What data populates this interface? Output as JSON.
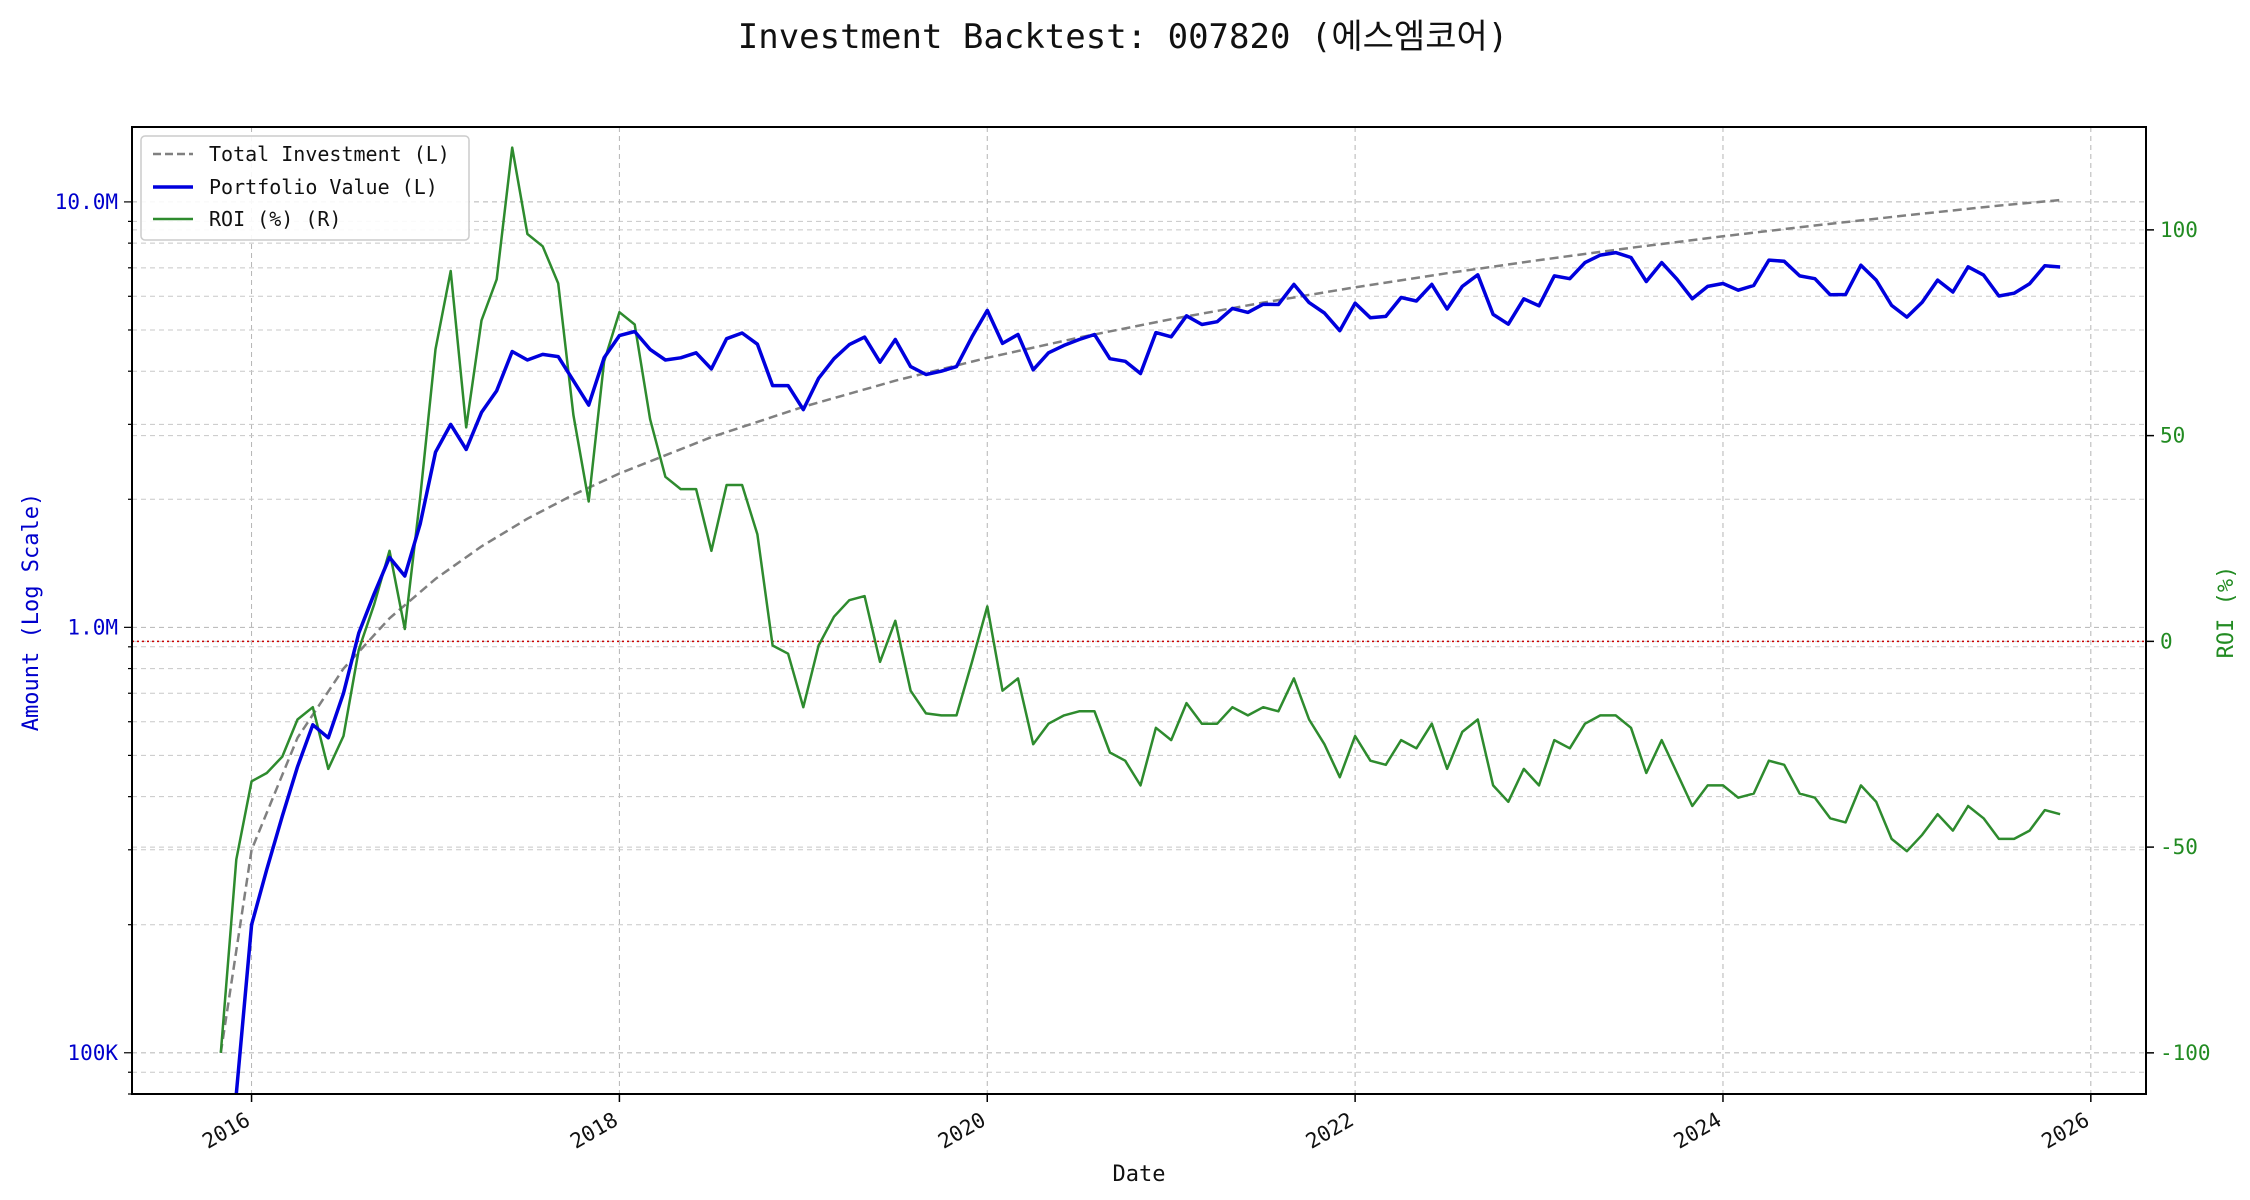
{
  "chart_data": {
    "type": "line",
    "title": "Investment Backtest: 007820 (에스엠코어)",
    "xlabel": "Date",
    "ylabel_left": "Amount (Log Scale)",
    "ylabel_right": "ROI (%)",
    "left_scale": "log",
    "left_ylim": [
      80000,
      15000000
    ],
    "right_ylim": [
      -110,
      125
    ],
    "xlim": [
      2015.35,
      2026.3
    ],
    "grid": true,
    "legend_position": "upper-left",
    "x_ticks": [
      "2016",
      "2018",
      "2020",
      "2022",
      "2024",
      "2026"
    ],
    "left_ticks": [
      "100K",
      "1.0M",
      "10.0M"
    ],
    "right_ticks": [
      "-100",
      "-50",
      "0",
      "50",
      "100"
    ],
    "reference_line": {
      "axis": "right",
      "value": 0,
      "color": "#cc0000",
      "style": "dotted"
    },
    "colors": {
      "total_investment": "#808080",
      "portfolio": "#0000dd",
      "roi": "#2e8b2e",
      "left_axis": "#0000cc",
      "right_axis": "#228b22"
    },
    "series": [
      {
        "name": "Total Investment (L)",
        "axis": "left",
        "style": "dashed",
        "x": [
          2015.833,
          2016.0,
          2016.25,
          2016.5,
          2016.75,
          2017.0,
          2017.25,
          2017.5,
          2017.75,
          2018.0,
          2018.5,
          2019.0,
          2019.5,
          2020.0,
          2020.5,
          2021.0,
          2021.5,
          2022.0,
          2022.5,
          2023.0,
          2023.5,
          2024.0,
          2024.5,
          2025.0,
          2025.5,
          2025.833
        ],
        "y": [
          100000,
          300000,
          550000,
          800000,
          1050000,
          1300000,
          1550000,
          1800000,
          2050000,
          2300000,
          2800000,
          3300000,
          3800000,
          4300000,
          4800000,
          5300000,
          5800000,
          6300000,
          6800000,
          7300000,
          7800000,
          8300000,
          8800000,
          9300000,
          9800000,
          10100000
        ]
      },
      {
        "name": "Portfolio Value (L)",
        "axis": "left",
        "style": "solid",
        "x": [
          2015.917,
          2016.0,
          2016.083,
          2016.167,
          2016.25,
          2016.333,
          2016.417,
          2016.5,
          2016.583,
          2016.667,
          2016.75,
          2016.833,
          2016.917,
          2017.0,
          2017.083,
          2017.167,
          2017.25,
          2017.333,
          2017.417,
          2017.5,
          2017.583,
          2017.667,
          2017.75,
          2017.833,
          2017.917,
          2018.0,
          2018.083,
          2018.167,
          2018.25,
          2018.333,
          2018.417,
          2018.5,
          2018.583,
          2018.667,
          2018.75,
          2018.833,
          2018.917,
          2019.0,
          2019.083,
          2019.167,
          2019.25,
          2019.333,
          2019.417,
          2019.5,
          2019.583,
          2019.667,
          2019.75,
          2019.833,
          2019.917,
          2020.0,
          2020.083,
          2020.167,
          2020.25,
          2020.333,
          2020.417,
          2020.5,
          2020.583,
          2020.667,
          2020.75,
          2020.833,
          2020.917,
          2021.0,
          2021.083,
          2021.167,
          2021.25,
          2021.333,
          2021.417,
          2021.5,
          2021.583,
          2021.667,
          2021.75,
          2021.833,
          2021.917,
          2022.0,
          2022.083,
          2022.167,
          2022.25,
          2022.333,
          2022.417,
          2022.5,
          2022.583,
          2022.667,
          2022.75,
          2022.833,
          2022.917,
          2023.0,
          2023.083,
          2023.167,
          2023.25,
          2023.333,
          2023.417,
          2023.5,
          2023.583,
          2023.667,
          2023.75,
          2023.833,
          2023.917,
          2024.0,
          2024.083,
          2024.167,
          2024.25,
          2024.333,
          2024.417,
          2024.5,
          2024.583,
          2024.667,
          2024.75,
          2024.833,
          2024.917,
          2025.0,
          2025.083,
          2025.167,
          2025.25,
          2025.333,
          2025.417,
          2025.5,
          2025.583,
          2025.667,
          2025.75,
          2025.833
        ],
        "y": [
          60000,
          200000,
          270000,
          360000,
          470000,
          590000,
          550000,
          700000,
          970000,
          1200000,
          1460000,
          1320000,
          1750000,
          2580000,
          3000000,
          2620000,
          3200000,
          3600000,
          4450000,
          4250000,
          4380000,
          4330000,
          3800000,
          3330000,
          4300000,
          4850000,
          4960000,
          4500000,
          4250000,
          4300000,
          4420000,
          4050000,
          4770000,
          4920000,
          4630000,
          3700000,
          3700000,
          3250000,
          3850000,
          4280000,
          4620000,
          4810000,
          4200000,
          4750000,
          4100000,
          3930000,
          4000000,
          4100000,
          4820000,
          5560000,
          4650000,
          4880000,
          4030000,
          4420000,
          4600000,
          4750000,
          4880000,
          4280000,
          4220000,
          3950000,
          4930000,
          4820000,
          5400000,
          5150000,
          5230000,
          5620000,
          5500000,
          5750000,
          5740000,
          6400000,
          5800000,
          5480000,
          4980000,
          5780000,
          5340000,
          5380000,
          5960000,
          5850000,
          6400000,
          5600000,
          6330000,
          6740000,
          5440000,
          5160000,
          5920000,
          5700000,
          6700000,
          6600000,
          7200000,
          7500000,
          7600000,
          7400000,
          6500000,
          7200000,
          6580000,
          5920000,
          6330000,
          6430000,
          6200000,
          6360000,
          7300000,
          7250000,
          6700000,
          6600000,
          6050000,
          6060000,
          7100000,
          6550000,
          5710000,
          5360000,
          5810000,
          6550000,
          6140000,
          7040000,
          6730000,
          6010000,
          6100000,
          6420000,
          7080000,
          7030000
        ]
      },
      {
        "name": "ROI (%) (R)",
        "axis": "right",
        "style": "solid",
        "x": [
          2015.833,
          2015.917,
          2016.0,
          2016.083,
          2016.167,
          2016.25,
          2016.333,
          2016.417,
          2016.5,
          2016.583,
          2016.667,
          2016.75,
          2016.833,
          2016.917,
          2017.0,
          2017.083,
          2017.167,
          2017.25,
          2017.333,
          2017.417,
          2017.5,
          2017.583,
          2017.667,
          2017.75,
          2017.833,
          2017.917,
          2018.0,
          2018.083,
          2018.167,
          2018.25,
          2018.333,
          2018.417,
          2018.5,
          2018.583,
          2018.667,
          2018.75,
          2018.833,
          2018.917,
          2019.0,
          2019.083,
          2019.167,
          2019.25,
          2019.333,
          2019.417,
          2019.5,
          2019.583,
          2019.667,
          2019.75,
          2019.833,
          2019.917,
          2020.0,
          2020.083,
          2020.167,
          2020.25,
          2020.333,
          2020.417,
          2020.5,
          2020.583,
          2020.667,
          2020.75,
          2020.833,
          2020.917,
          2021.0,
          2021.083,
          2021.167,
          2021.25,
          2021.333,
          2021.417,
          2021.5,
          2021.583,
          2021.667,
          2021.75,
          2021.833,
          2021.917,
          2022.0,
          2022.083,
          2022.167,
          2022.25,
          2022.333,
          2022.417,
          2022.5,
          2022.583,
          2022.667,
          2022.75,
          2022.833,
          2022.917,
          2023.0,
          2023.083,
          2023.167,
          2023.25,
          2023.333,
          2023.417,
          2023.5,
          2023.583,
          2023.667,
          2023.75,
          2023.833,
          2023.917,
          2024.0,
          2024.083,
          2024.167,
          2024.25,
          2024.333,
          2024.417,
          2024.5,
          2024.583,
          2024.667,
          2024.75,
          2024.833,
          2024.917,
          2025.0,
          2025.083,
          2025.167,
          2025.25,
          2025.333,
          2025.417,
          2025.5,
          2025.583,
          2025.667,
          2025.75,
          2025.833
        ],
        "y": [
          -100,
          -53,
          -34,
          -32,
          -28,
          -19,
          -16,
          -31,
          -23,
          -2,
          9,
          22,
          3,
          35,
          71,
          90,
          52,
          78,
          88,
          120,
          99,
          96,
          87,
          55,
          34,
          68,
          80,
          77,
          54,
          40,
          37,
          37,
          22,
          38,
          38,
          26,
          -1,
          -3,
          -16,
          -1,
          6,
          10,
          11,
          -5,
          5,
          -12,
          -17.5,
          -18,
          -18,
          -5,
          8.5,
          -12,
          -9,
          -25,
          -20,
          -18,
          -17,
          -17,
          -27,
          -29,
          -35,
          -21,
          -24,
          -15,
          -20,
          -20,
          -16,
          -18,
          -16,
          -17,
          -9,
          -19,
          -25,
          -33,
          -23,
          -29,
          -30,
          -24,
          -26,
          -20,
          -31,
          -22,
          -19,
          -35,
          -39,
          -31,
          -35,
          -24,
          -26,
          -20,
          -18,
          -18,
          -21,
          -32,
          -24,
          -32,
          -40,
          -35,
          -35,
          -38,
          -37,
          -29,
          -30,
          -37,
          -38,
          -43,
          -44,
          -35,
          -39,
          -48,
          -51,
          -47,
          -42,
          -46,
          -40,
          -43,
          -48,
          -48,
          -46,
          -41,
          -42
        ]
      }
    ]
  }
}
